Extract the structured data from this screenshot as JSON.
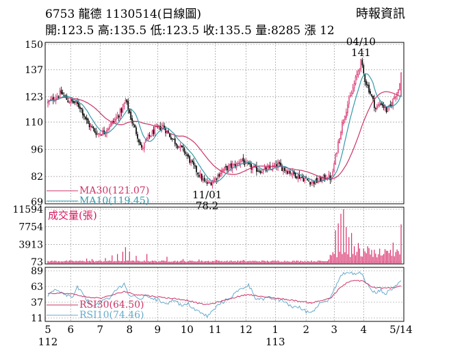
{
  "header": {
    "code": "6753",
    "name": "龍德",
    "date": "1130514",
    "period": "(日線圖)",
    "source": "時報資訊",
    "ohlc": [
      {
        "label": "開",
        "value": "123.5"
      },
      {
        "label": "高",
        "value": "135.5"
      },
      {
        "label": "低",
        "value": "123.5"
      },
      {
        "label": "收",
        "value": "135.5"
      },
      {
        "label": "量",
        "value": "8285"
      },
      {
        "label": "漲",
        "value": "12"
      }
    ]
  },
  "colors": {
    "up": "#d4145a",
    "down": "#000000",
    "ma30": "#cc3366",
    "ma10": "#3399aa",
    "rsi30": "#cc3366",
    "rsi10": "#66aacc",
    "volume": "#d4145a"
  },
  "chart_data": {
    "type": "candlestick",
    "price": {
      "yticks": [
        "150",
        "137",
        "123",
        "110",
        "96",
        "82",
        "69"
      ],
      "ylim": [
        69,
        150
      ],
      "annotations": [
        {
          "date": "11/01",
          "value": "78.2",
          "kind": "low"
        },
        {
          "date": "04/10",
          "value": "141",
          "kind": "high"
        }
      ],
      "legend": [
        {
          "name": "MA30",
          "value": "(121.07)",
          "color": "#cc3366"
        },
        {
          "name": "MA10",
          "value": "(119.45)",
          "color": "#3399aa"
        }
      ]
    },
    "volume": {
      "label": "成交量(張)",
      "yticks": [
        "11594",
        "7754",
        "3913",
        "73"
      ],
      "ylim": [
        73,
        11594
      ]
    },
    "rsi": {
      "yticks": [
        "89",
        "63",
        "37",
        "11"
      ],
      "ylim": [
        11,
        89
      ],
      "legend": [
        {
          "name": "RSI30",
          "value": "(64.50)",
          "color": "#cc3366"
        },
        {
          "name": "RSI10",
          "value": "(74.46)",
          "color": "#66aacc"
        }
      ]
    },
    "x_axis": {
      "month_ticks": [
        "5",
        "6",
        "7",
        "8",
        "9",
        "10",
        "11",
        "12",
        "1",
        "2",
        "3",
        "4",
        "5/14"
      ],
      "year_labels": [
        "112",
        "113"
      ]
    },
    "price_path": [
      [
        0,
        120
      ],
      [
        6,
        123
      ],
      [
        10,
        125
      ],
      [
        15,
        121
      ],
      [
        20,
        120
      ],
      [
        24,
        118
      ],
      [
        30,
        109
      ],
      [
        37,
        104
      ],
      [
        42,
        105
      ],
      [
        47,
        109
      ],
      [
        51,
        112
      ],
      [
        56,
        117
      ],
      [
        58,
        121
      ],
      [
        60,
        117
      ],
      [
        63,
        110
      ],
      [
        67,
        103
      ],
      [
        70,
        96
      ],
      [
        74,
        101
      ],
      [
        80,
        106
      ],
      [
        86,
        108
      ],
      [
        90,
        104
      ],
      [
        96,
        99
      ],
      [
        102,
        95
      ],
      [
        108,
        88
      ],
      [
        113,
        83
      ],
      [
        117,
        79
      ],
      [
        120,
        78.2
      ],
      [
        124,
        80
      ],
      [
        130,
        85
      ],
      [
        136,
        87
      ],
      [
        141,
        88
      ],
      [
        145,
        91
      ],
      [
        148,
        88
      ],
      [
        154,
        86
      ],
      [
        160,
        85
      ],
      [
        166,
        86
      ],
      [
        172,
        88
      ],
      [
        176,
        86
      ],
      [
        182,
        84
      ],
      [
        188,
        82
      ],
      [
        194,
        80
      ],
      [
        198,
        79
      ],
      [
        203,
        80
      ],
      [
        208,
        82
      ],
      [
        212,
        81
      ],
      [
        215,
        92
      ],
      [
        218,
        103
      ],
      [
        221,
        112
      ],
      [
        224,
        119
      ],
      [
        227,
        125
      ],
      [
        230,
        132
      ],
      [
        234,
        141
      ],
      [
        237,
        132
      ],
      [
        241,
        125
      ],
      [
        245,
        117
      ],
      [
        249,
        120
      ],
      [
        253,
        116
      ],
      [
        256,
        118
      ],
      [
        259,
        123
      ],
      [
        262,
        127
      ],
      [
        264,
        135.5
      ]
    ],
    "volume_peaks": [
      [
        29,
        800
      ],
      [
        33,
        700
      ],
      [
        43,
        900
      ],
      [
        48,
        1500
      ],
      [
        52,
        1800
      ],
      [
        56,
        2300
      ],
      [
        58,
        3300
      ],
      [
        61,
        2300
      ],
      [
        66,
        1400
      ],
      [
        74,
        1800
      ],
      [
        89,
        1200
      ],
      [
        101,
        700
      ],
      [
        113,
        600
      ],
      [
        126,
        500
      ],
      [
        146,
        500
      ],
      [
        160,
        400
      ],
      [
        172,
        400
      ],
      [
        190,
        200
      ],
      [
        210,
        600
      ],
      [
        212,
        1500
      ],
      [
        215,
        7000
      ],
      [
        217,
        8500
      ],
      [
        219,
        10600
      ],
      [
        221,
        11594
      ],
      [
        223,
        7700
      ],
      [
        225,
        5500
      ],
      [
        227,
        6400
      ],
      [
        229,
        3500
      ],
      [
        232,
        4200
      ],
      [
        236,
        3000
      ],
      [
        239,
        3500
      ],
      [
        242,
        2700
      ],
      [
        245,
        1900
      ],
      [
        250,
        1500
      ],
      [
        254,
        2500
      ],
      [
        258,
        4300
      ],
      [
        261,
        2800
      ],
      [
        264,
        8285
      ]
    ],
    "rsi10_path": [
      [
        0,
        47
      ],
      [
        5,
        57
      ],
      [
        10,
        52
      ],
      [
        15,
        48
      ],
      [
        19,
        45
      ],
      [
        22,
        62
      ],
      [
        26,
        50
      ],
      [
        31,
        36
      ],
      [
        36,
        32
      ],
      [
        41,
        40
      ],
      [
        46,
        42
      ],
      [
        50,
        56
      ],
      [
        55,
        64
      ],
      [
        57,
        70
      ],
      [
        60,
        50
      ],
      [
        65,
        45
      ],
      [
        68,
        42
      ],
      [
        74,
        48
      ],
      [
        80,
        42
      ],
      [
        85,
        38
      ],
      [
        90,
        36
      ],
      [
        95,
        42
      ],
      [
        100,
        30
      ],
      [
        105,
        34
      ],
      [
        110,
        25
      ],
      [
        115,
        18
      ],
      [
        119,
        14
      ],
      [
        123,
        22
      ],
      [
        128,
        34
      ],
      [
        133,
        40
      ],
      [
        139,
        50
      ],
      [
        145,
        60
      ],
      [
        150,
        66
      ],
      [
        155,
        45
      ],
      [
        161,
        42
      ],
      [
        166,
        44
      ],
      [
        172,
        41
      ],
      [
        177,
        38
      ],
      [
        182,
        30
      ],
      [
        188,
        28
      ],
      [
        193,
        22
      ],
      [
        197,
        20
      ],
      [
        201,
        30
      ],
      [
        206,
        40
      ],
      [
        210,
        42
      ],
      [
        214,
        58
      ],
      [
        218,
        76
      ],
      [
        222,
        86
      ],
      [
        226,
        85
      ],
      [
        230,
        84
      ],
      [
        234,
        86
      ],
      [
        238,
        70
      ],
      [
        241,
        58
      ],
      [
        245,
        52
      ],
      [
        249,
        57
      ],
      [
        253,
        51
      ],
      [
        257,
        60
      ],
      [
        261,
        65
      ],
      [
        264,
        75
      ]
    ],
    "rsi30_path": [
      [
        0,
        52
      ],
      [
        10,
        52
      ],
      [
        20,
        50
      ],
      [
        30,
        45
      ],
      [
        40,
        44
      ],
      [
        50,
        50
      ],
      [
        57,
        55
      ],
      [
        65,
        50
      ],
      [
        75,
        48
      ],
      [
        85,
        45
      ],
      [
        95,
        43
      ],
      [
        105,
        40
      ],
      [
        113,
        35
      ],
      [
        119,
        33
      ],
      [
        125,
        36
      ],
      [
        135,
        42
      ],
      [
        145,
        48
      ],
      [
        150,
        50
      ],
      [
        160,
        46
      ],
      [
        170,
        44
      ],
      [
        180,
        41
      ],
      [
        190,
        38
      ],
      [
        197,
        36
      ],
      [
        205,
        40
      ],
      [
        212,
        45
      ],
      [
        218,
        60
      ],
      [
        224,
        70
      ],
      [
        230,
        73
      ],
      [
        236,
        72
      ],
      [
        242,
        62
      ],
      [
        250,
        60
      ],
      [
        258,
        61
      ],
      [
        264,
        64.5
      ]
    ]
  }
}
